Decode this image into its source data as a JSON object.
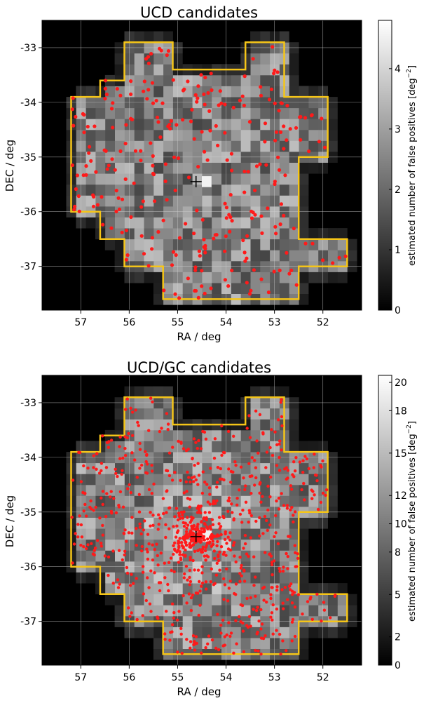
{
  "chart_data": [
    {
      "type": "heatmap",
      "title": "UCD candidates",
      "xlabel": "RA / deg",
      "ylabel": "DEC / deg",
      "xlim": [
        57.8,
        51.2
      ],
      "ylim": [
        -37.8,
        -32.5
      ],
      "x_ticks": [
        "57",
        "56",
        "55",
        "54",
        "53",
        "52"
      ],
      "y_ticks": [
        "-33",
        "-34",
        "-35",
        "-36",
        "-37"
      ],
      "grid": true,
      "colorbar": {
        "label": "estimated number of false positives [deg",
        "label_exponent": "−2",
        "label_end": "]",
        "range": [
          0,
          4.8
        ],
        "ticks": [
          "0",
          "1",
          "2",
          "3",
          "4"
        ],
        "colormap": "gray"
      },
      "center_marker": {
        "ra": 54.62,
        "dec": -35.45
      },
      "points": {
        "color": "#ff1a1a",
        "count": 280
      },
      "footprint_color": "#f5c518"
    },
    {
      "type": "heatmap",
      "title": "UCD/GC candidates",
      "xlabel": "RA / deg",
      "ylabel": "DEC / deg",
      "xlim": [
        57.8,
        51.2
      ],
      "ylim": [
        -37.8,
        -32.5
      ],
      "x_ticks": [
        "57",
        "56",
        "55",
        "54",
        "53",
        "52"
      ],
      "y_ticks": [
        "-33",
        "-34",
        "-35",
        "-36",
        "-37"
      ],
      "grid": true,
      "colorbar": {
        "label": "estimated number of false positives [deg",
        "label_exponent": "−2",
        "label_end": "]",
        "range": [
          0,
          20.5
        ],
        "ticks": [
          "0",
          "2",
          "5",
          "8",
          "10",
          "12",
          "15",
          "18",
          "20"
        ],
        "colormap": "gray"
      },
      "center_marker": {
        "ra": 54.62,
        "dec": -35.45
      },
      "points": {
        "color": "#ff1a1a",
        "count": 900
      },
      "footprint_color": "#f5c518"
    }
  ]
}
